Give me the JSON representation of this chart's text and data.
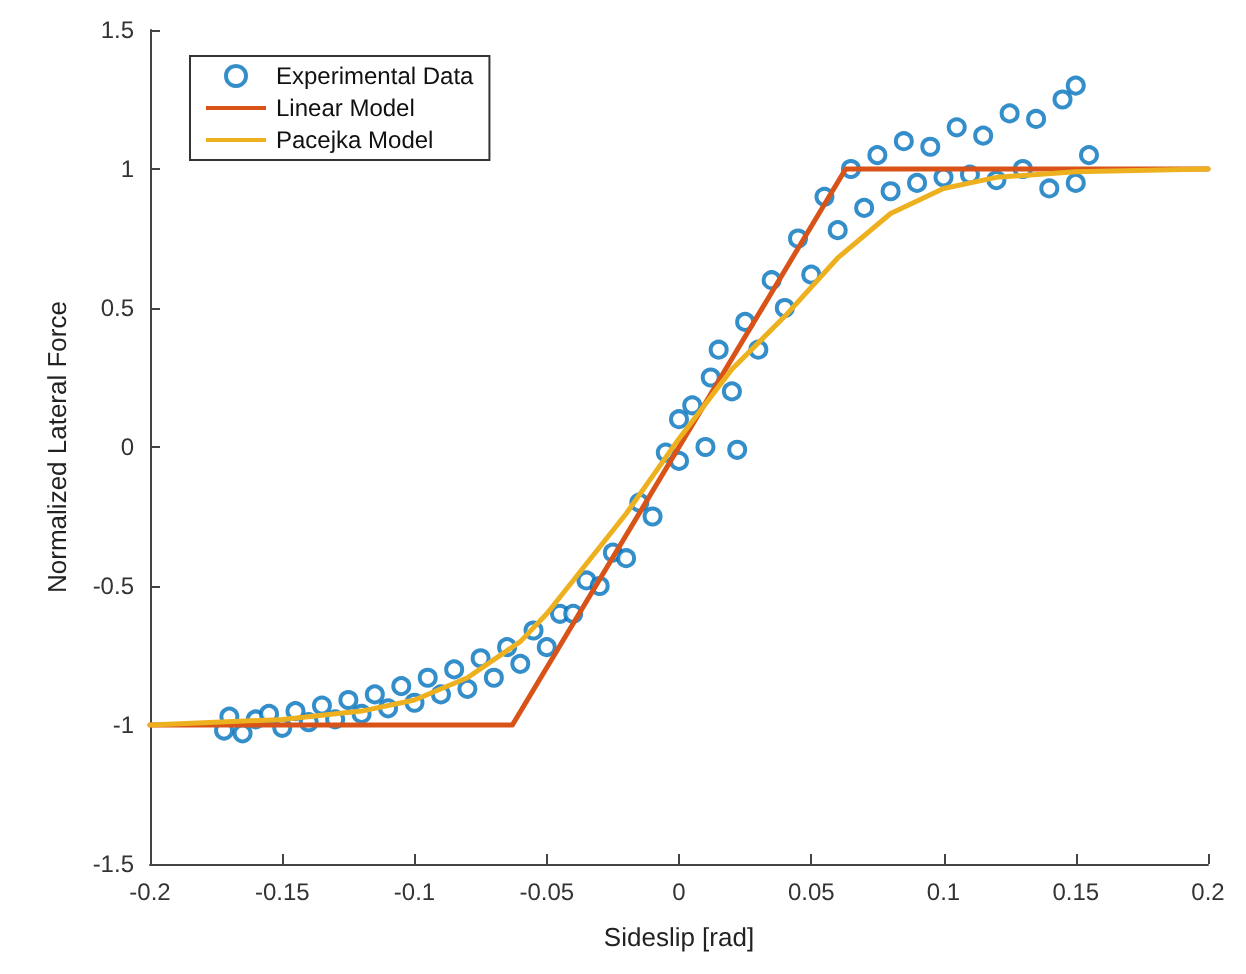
{
  "chart_data": {
    "type": "scatter",
    "xlabel": "Sideslip [rad]",
    "ylabel": "Normalized Lateral Force",
    "xlim": [
      -0.2,
      0.2
    ],
    "xticks": [
      -0.2,
      -0.15,
      -0.1,
      -0.05,
      0,
      0.05,
      0.1,
      0.15,
      0.2
    ],
    "ylim": [
      -1.5,
      1.5
    ],
    "yticks": [
      -1.5,
      -1,
      -0.5,
      0,
      0.5,
      1,
      1.5
    ],
    "grid": false,
    "legend": "top left",
    "series": [
      {
        "name": "Experimental Data",
        "marker": "circle",
        "color": "#0072bd",
        "x": [
          -0.172,
          -0.17,
          -0.165,
          -0.16,
          -0.155,
          -0.15,
          -0.145,
          -0.14,
          -0.135,
          -0.13,
          -0.125,
          -0.12,
          -0.115,
          -0.11,
          -0.105,
          -0.1,
          -0.095,
          -0.09,
          -0.085,
          -0.08,
          -0.075,
          -0.07,
          -0.065,
          -0.06,
          -0.055,
          -0.05,
          -0.045,
          -0.04,
          -0.035,
          -0.03,
          -0.025,
          -0.02,
          -0.015,
          -0.01,
          -0.005,
          0,
          0,
          0.005,
          0.01,
          0.012,
          0.015,
          0.02,
          0.022,
          0.025,
          0.03,
          0.035,
          0.04,
          0.045,
          0.05,
          0.055,
          0.06,
          0.065,
          0.07,
          0.075,
          0.08,
          0.085,
          0.09,
          0.095,
          0.1,
          0.105,
          0.11,
          0.115,
          0.12,
          0.125,
          0.13,
          0.135,
          0.14,
          0.145,
          0.15,
          0.15,
          0.155
        ],
        "values": [
          -1.02,
          -0.97,
          -1.03,
          -0.98,
          -0.96,
          -1.01,
          -0.95,
          -0.99,
          -0.93,
          -0.98,
          -0.91,
          -0.96,
          -0.89,
          -0.94,
          -0.86,
          -0.92,
          -0.83,
          -0.89,
          -0.8,
          -0.87,
          -0.76,
          -0.83,
          -0.72,
          -0.78,
          -0.66,
          -0.72,
          -0.6,
          -0.6,
          -0.48,
          -0.5,
          -0.38,
          -0.4,
          -0.2,
          -0.25,
          -0.02,
          -0.05,
          0.1,
          0.15,
          0.0,
          0.25,
          0.35,
          0.2,
          -0.01,
          0.45,
          0.35,
          0.6,
          0.5,
          0.75,
          0.62,
          0.9,
          0.78,
          1.0,
          0.86,
          1.05,
          0.92,
          1.1,
          0.95,
          1.08,
          0.97,
          1.15,
          0.98,
          1.12,
          0.96,
          1.2,
          1.0,
          1.18,
          0.93,
          1.25,
          1.3,
          0.95,
          1.05
        ]
      },
      {
        "name": "Linear Model",
        "type": "line",
        "marker": "none",
        "color": "#d95319",
        "x": [
          -0.2,
          -0.063,
          0.063,
          0.2
        ],
        "values": [
          -1,
          -1,
          1,
          1
        ]
      },
      {
        "name": "Pacejka Model",
        "type": "line",
        "marker": "none",
        "color": "#edb120",
        "x": [
          -0.2,
          -0.15,
          -0.12,
          -0.1,
          -0.08,
          -0.06,
          -0.05,
          -0.04,
          -0.02,
          0,
          0.02,
          0.04,
          0.06,
          0.08,
          0.1,
          0.12,
          0.15,
          0.2
        ],
        "values": [
          -1,
          -0.98,
          -0.95,
          -0.91,
          -0.83,
          -0.7,
          -0.6,
          -0.48,
          -0.24,
          0.03,
          0.28,
          0.47,
          0.68,
          0.84,
          0.93,
          0.97,
          0.99,
          1.0
        ]
      }
    ]
  }
}
